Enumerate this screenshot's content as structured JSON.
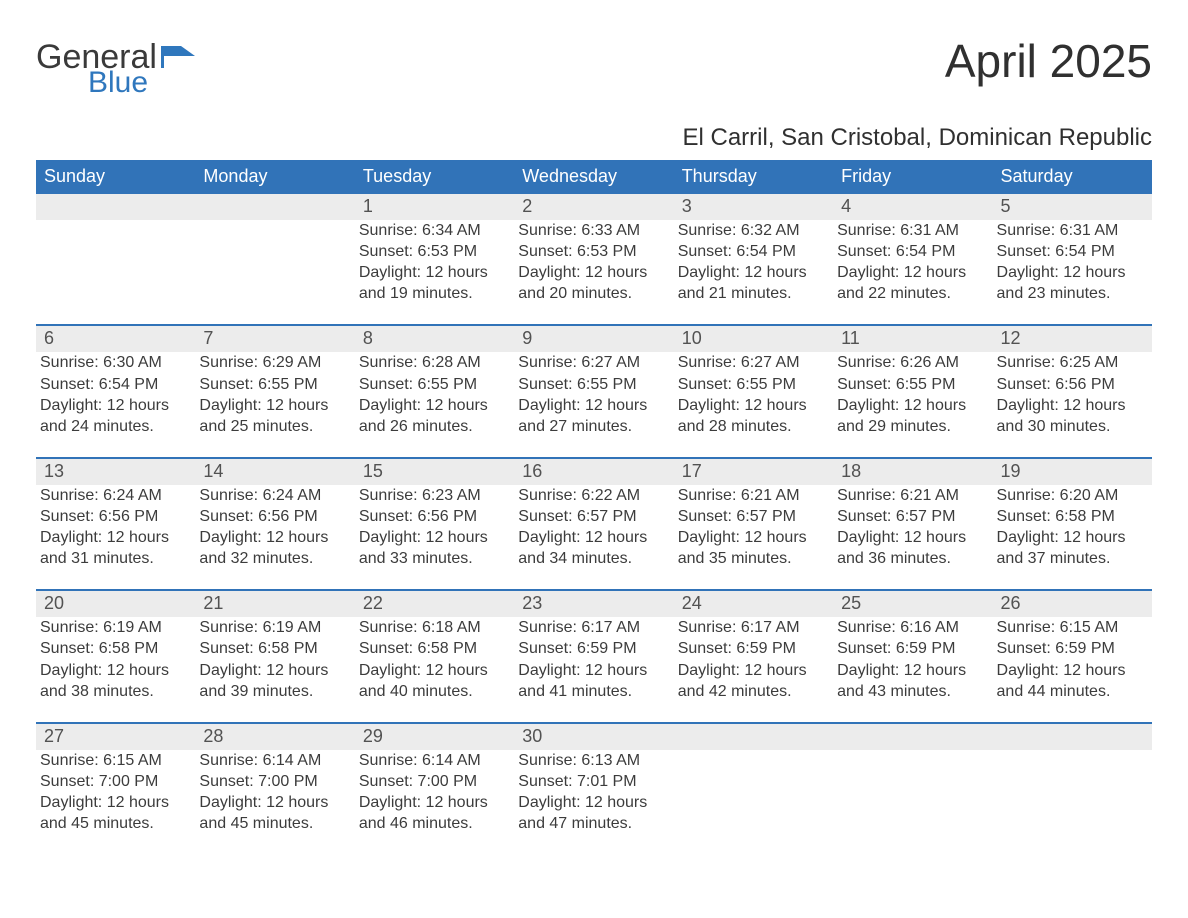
{
  "logo": {
    "word1": "General",
    "word2": "Blue",
    "flag_color": "#2f77bd",
    "word1_color": "#3a3a3a"
  },
  "title": "April 2025",
  "subtitle": "El Carril, San Cristobal, Dominican Republic",
  "colors": {
    "header_bg": "#3173b8",
    "header_text": "#ffffff",
    "daynum_bg": "#ececec",
    "daynum_text": "#525252",
    "body_text": "#3c3c3c",
    "week_border": "#3173b8",
    "page_bg": "#ffffff"
  },
  "fontsizes": {
    "title": 46,
    "subtitle": 24,
    "dow": 18,
    "daynum": 18,
    "body": 16
  },
  "days_of_week": [
    "Sunday",
    "Monday",
    "Tuesday",
    "Wednesday",
    "Thursday",
    "Friday",
    "Saturday"
  ],
  "labels": {
    "sunrise": "Sunrise:",
    "sunset": "Sunset:",
    "daylight": "Daylight:",
    "hours_word": "hours",
    "minutes_word": "minutes.",
    "and_word": "and"
  },
  "weeks": [
    [
      {
        "blank": true
      },
      {
        "blank": true
      },
      {
        "n": "1",
        "sunrise": "6:34 AM",
        "sunset": "6:53 PM",
        "dl_h": 12,
        "dl_m": 19
      },
      {
        "n": "2",
        "sunrise": "6:33 AM",
        "sunset": "6:53 PM",
        "dl_h": 12,
        "dl_m": 20
      },
      {
        "n": "3",
        "sunrise": "6:32 AM",
        "sunset": "6:54 PM",
        "dl_h": 12,
        "dl_m": 21
      },
      {
        "n": "4",
        "sunrise": "6:31 AM",
        "sunset": "6:54 PM",
        "dl_h": 12,
        "dl_m": 22
      },
      {
        "n": "5",
        "sunrise": "6:31 AM",
        "sunset": "6:54 PM",
        "dl_h": 12,
        "dl_m": 23
      }
    ],
    [
      {
        "n": "6",
        "sunrise": "6:30 AM",
        "sunset": "6:54 PM",
        "dl_h": 12,
        "dl_m": 24
      },
      {
        "n": "7",
        "sunrise": "6:29 AM",
        "sunset": "6:55 PM",
        "dl_h": 12,
        "dl_m": 25
      },
      {
        "n": "8",
        "sunrise": "6:28 AM",
        "sunset": "6:55 PM",
        "dl_h": 12,
        "dl_m": 26
      },
      {
        "n": "9",
        "sunrise": "6:27 AM",
        "sunset": "6:55 PM",
        "dl_h": 12,
        "dl_m": 27
      },
      {
        "n": "10",
        "sunrise": "6:27 AM",
        "sunset": "6:55 PM",
        "dl_h": 12,
        "dl_m": 28
      },
      {
        "n": "11",
        "sunrise": "6:26 AM",
        "sunset": "6:55 PM",
        "dl_h": 12,
        "dl_m": 29
      },
      {
        "n": "12",
        "sunrise": "6:25 AM",
        "sunset": "6:56 PM",
        "dl_h": 12,
        "dl_m": 30
      }
    ],
    [
      {
        "n": "13",
        "sunrise": "6:24 AM",
        "sunset": "6:56 PM",
        "dl_h": 12,
        "dl_m": 31
      },
      {
        "n": "14",
        "sunrise": "6:24 AM",
        "sunset": "6:56 PM",
        "dl_h": 12,
        "dl_m": 32
      },
      {
        "n": "15",
        "sunrise": "6:23 AM",
        "sunset": "6:56 PM",
        "dl_h": 12,
        "dl_m": 33
      },
      {
        "n": "16",
        "sunrise": "6:22 AM",
        "sunset": "6:57 PM",
        "dl_h": 12,
        "dl_m": 34
      },
      {
        "n": "17",
        "sunrise": "6:21 AM",
        "sunset": "6:57 PM",
        "dl_h": 12,
        "dl_m": 35
      },
      {
        "n": "18",
        "sunrise": "6:21 AM",
        "sunset": "6:57 PM",
        "dl_h": 12,
        "dl_m": 36
      },
      {
        "n": "19",
        "sunrise": "6:20 AM",
        "sunset": "6:58 PM",
        "dl_h": 12,
        "dl_m": 37
      }
    ],
    [
      {
        "n": "20",
        "sunrise": "6:19 AM",
        "sunset": "6:58 PM",
        "dl_h": 12,
        "dl_m": 38
      },
      {
        "n": "21",
        "sunrise": "6:19 AM",
        "sunset": "6:58 PM",
        "dl_h": 12,
        "dl_m": 39
      },
      {
        "n": "22",
        "sunrise": "6:18 AM",
        "sunset": "6:58 PM",
        "dl_h": 12,
        "dl_m": 40
      },
      {
        "n": "23",
        "sunrise": "6:17 AM",
        "sunset": "6:59 PM",
        "dl_h": 12,
        "dl_m": 41
      },
      {
        "n": "24",
        "sunrise": "6:17 AM",
        "sunset": "6:59 PM",
        "dl_h": 12,
        "dl_m": 42
      },
      {
        "n": "25",
        "sunrise": "6:16 AM",
        "sunset": "6:59 PM",
        "dl_h": 12,
        "dl_m": 43
      },
      {
        "n": "26",
        "sunrise": "6:15 AM",
        "sunset": "6:59 PM",
        "dl_h": 12,
        "dl_m": 44
      }
    ],
    [
      {
        "n": "27",
        "sunrise": "6:15 AM",
        "sunset": "7:00 PM",
        "dl_h": 12,
        "dl_m": 45
      },
      {
        "n": "28",
        "sunrise": "6:14 AM",
        "sunset": "7:00 PM",
        "dl_h": 12,
        "dl_m": 45
      },
      {
        "n": "29",
        "sunrise": "6:14 AM",
        "sunset": "7:00 PM",
        "dl_h": 12,
        "dl_m": 46
      },
      {
        "n": "30",
        "sunrise": "6:13 AM",
        "sunset": "7:01 PM",
        "dl_h": 12,
        "dl_m": 47
      },
      {
        "blank": true
      },
      {
        "blank": true
      },
      {
        "blank": true
      }
    ]
  ]
}
